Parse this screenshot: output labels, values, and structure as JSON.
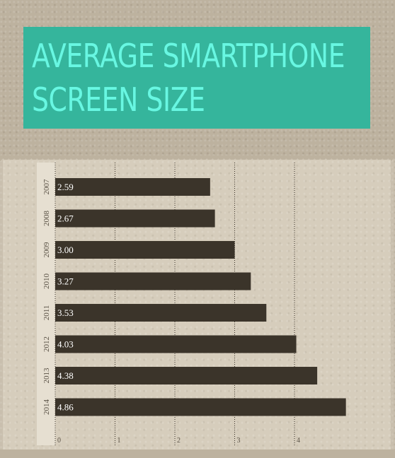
{
  "title": {
    "line1": "AVERAGE SMARTPHONE",
    "line2": "SCREEN SIZE"
  },
  "colors": {
    "title_background": "#35b59c",
    "title_text": "#68f7e2",
    "bar": "#3b342a",
    "background": "#c9bfae"
  },
  "chart_data": {
    "type": "bar",
    "orientation": "horizontal",
    "title": "AVERAGE SMARTPHONE SCREEN SIZE",
    "categories": [
      "2007",
      "2008",
      "2009",
      "2010",
      "2011",
      "2012",
      "2013",
      "2014"
    ],
    "values": [
      2.59,
      2.67,
      3.0,
      3.27,
      3.53,
      4.03,
      4.38,
      4.86
    ],
    "value_labels": [
      "2.59",
      "2.67",
      "3.00",
      "3.27",
      "3.53",
      "4.03",
      "4.38",
      "4.86"
    ],
    "xticks": [
      "0",
      "1",
      "2",
      "3",
      "4"
    ],
    "xlim": [
      0,
      5
    ],
    "grid": true,
    "legend": "none"
  }
}
